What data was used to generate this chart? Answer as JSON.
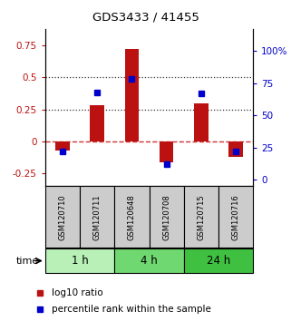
{
  "title": "GDS3433 / 41455",
  "samples": [
    "GSM120710",
    "GSM120711",
    "GSM120648",
    "GSM120708",
    "GSM120715",
    "GSM120716"
  ],
  "groups": [
    {
      "label": "1 h",
      "indices": [
        0,
        1
      ],
      "color": "#b8f0b8"
    },
    {
      "label": "4 h",
      "indices": [
        2,
        3
      ],
      "color": "#70d870"
    },
    {
      "label": "24 h",
      "indices": [
        4,
        5
      ],
      "color": "#40c040"
    }
  ],
  "log10_ratio": [
    -0.07,
    0.28,
    0.72,
    -0.16,
    0.3,
    -0.12
  ],
  "percentile_rank": [
    22,
    68,
    78,
    12,
    67,
    22
  ],
  "bar_color": "#bb1111",
  "dot_color": "#0000cc",
  "ylim_left": [
    -0.35,
    0.88
  ],
  "ylim_right": [
    -5,
    117
  ],
  "yticks_left": [
    -0.25,
    0,
    0.25,
    0.5,
    0.75
  ],
  "yticks_right": [
    0,
    25,
    50,
    75,
    100
  ],
  "ytick_labels_left": [
    "-0.25",
    "0",
    "0.25",
    "0.5",
    "0.75"
  ],
  "ytick_labels_right": [
    "0",
    "25",
    "50",
    "75",
    "100%"
  ],
  "hlines": [
    0.5,
    0.25
  ],
  "hline_zero_color": "#cc3333",
  "hline_dotted_color": "#333333",
  "sample_box_color": "#cccccc",
  "legend_log10": "log10 ratio",
  "legend_pct": "percentile rank within the sample",
  "time_label": "time",
  "bar_width": 0.4
}
